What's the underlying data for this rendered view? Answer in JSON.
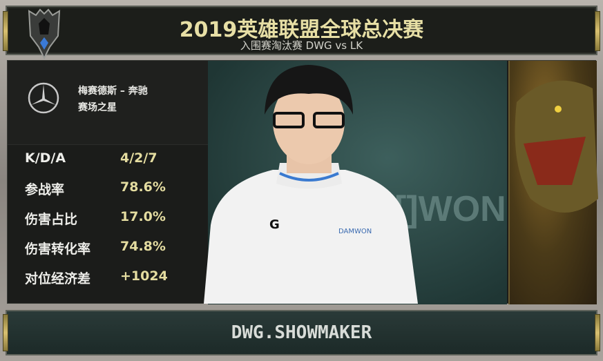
{
  "header": {
    "title": "2019英雄联盟全球总决赛",
    "subtitle": "入围赛淘汰赛  DWG vs LK",
    "logo_icon": "worlds-trophy-logo"
  },
  "sponsor": {
    "icon": "mercedes-benz-logo",
    "line1": "梅赛德斯 – 奔驰",
    "line2": "赛场之星"
  },
  "stats": [
    {
      "label": "K/D/A",
      "value": "4/2/7"
    },
    {
      "label": "参战率",
      "value": "78.6%"
    },
    {
      "label": "伤害占比",
      "value": "17.0%"
    },
    {
      "label": "伤害转化率",
      "value": "74.8%"
    },
    {
      "label": "对位经济差",
      "value": "+1024"
    }
  ],
  "player": {
    "name": "DWG.SHOWMAKER"
  },
  "colors": {
    "accent_gold": "#e4dca0",
    "panel_dark": "#1b1c1a",
    "teal_bg": "#2f4c49"
  }
}
